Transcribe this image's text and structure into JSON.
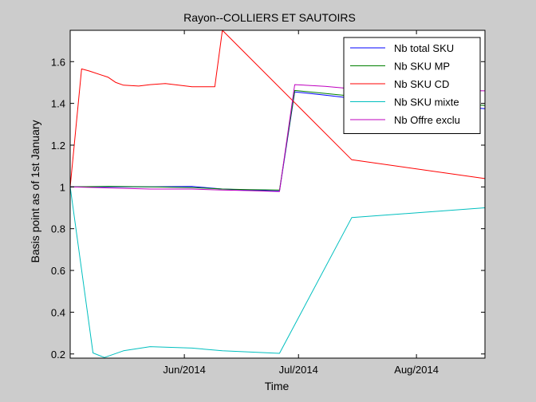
{
  "chart_data": {
    "type": "line",
    "title": "Rayon--COLLIERS ET SAUTOIRS",
    "xlabel": "Time",
    "ylabel": "Basis point as of 1st January",
    "ylim": [
      0.18,
      1.75
    ],
    "xlim": [
      "2014-05-02",
      "2014-08-19"
    ],
    "xticks": [
      {
        "x": "2014-06-01",
        "label": "Jun/2014"
      },
      {
        "x": "2014-07-01",
        "label": "Jul/2014"
      },
      {
        "x": "2014-08-01",
        "label": "Aug/2014"
      }
    ],
    "yticks": [
      {
        "y": 0.2,
        "label": "0.2"
      },
      {
        "y": 0.4,
        "label": "0.4"
      },
      {
        "y": 0.6,
        "label": "0.6"
      },
      {
        "y": 0.8,
        "label": "0.8"
      },
      {
        "y": 1.0,
        "label": "1"
      },
      {
        "y": 1.2,
        "label": "1.2"
      },
      {
        "y": 1.4,
        "label": "1.4"
      },
      {
        "y": 1.6,
        "label": "1.6"
      }
    ],
    "grid": false,
    "legend_position": "top-right",
    "series": [
      {
        "name": "Nb total SKU",
        "color": "#0000ff",
        "points": [
          [
            "2014-05-02",
            1.0
          ],
          [
            "2014-05-12",
            1.0
          ],
          [
            "2014-05-23",
            1.0
          ],
          [
            "2014-06-03",
            1.002
          ],
          [
            "2014-06-11",
            0.99
          ],
          [
            "2014-06-18",
            0.985
          ],
          [
            "2014-06-26",
            0.98
          ],
          [
            "2014-06-30",
            1.455
          ],
          [
            "2014-07-08",
            1.44
          ],
          [
            "2014-07-15",
            1.425
          ],
          [
            "2014-08-19",
            1.375
          ]
        ]
      },
      {
        "name": "Nb SKU MP",
        "color": "#008000",
        "points": [
          [
            "2014-05-02",
            1.0
          ],
          [
            "2014-05-12",
            1.003
          ],
          [
            "2014-05-23",
            1.0
          ],
          [
            "2014-06-03",
            0.997
          ],
          [
            "2014-06-11",
            0.99
          ],
          [
            "2014-06-18",
            0.987
          ],
          [
            "2014-06-26",
            0.985
          ],
          [
            "2014-06-30",
            1.462
          ],
          [
            "2014-07-08",
            1.448
          ],
          [
            "2014-07-15",
            1.435
          ],
          [
            "2014-08-19",
            1.39
          ]
        ]
      },
      {
        "name": "Nb SKU CD",
        "color": "#ff0000",
        "points": [
          [
            "2014-05-02",
            1.0
          ],
          [
            "2014-05-05",
            1.565
          ],
          [
            "2014-05-07",
            1.555
          ],
          [
            "2014-05-12",
            1.525
          ],
          [
            "2014-05-14",
            1.5
          ],
          [
            "2014-05-16",
            1.487
          ],
          [
            "2014-05-20",
            1.483
          ],
          [
            "2014-05-23",
            1.49
          ],
          [
            "2014-05-27",
            1.495
          ],
          [
            "2014-06-03",
            1.48
          ],
          [
            "2014-06-09",
            1.48
          ],
          [
            "2014-06-11",
            1.75
          ],
          [
            "2014-07-15",
            1.13
          ],
          [
            "2014-08-19",
            1.04
          ]
        ]
      },
      {
        "name": "Nb SKU mixte",
        "color": "#00bfbf",
        "points": [
          [
            "2014-05-02",
            1.0
          ],
          [
            "2014-05-08",
            0.205
          ],
          [
            "2014-05-11",
            0.183
          ],
          [
            "2014-05-16",
            0.215
          ],
          [
            "2014-05-23",
            0.235
          ],
          [
            "2014-06-03",
            0.228
          ],
          [
            "2014-06-11",
            0.215
          ],
          [
            "2014-06-26",
            0.203
          ],
          [
            "2014-07-15",
            0.853
          ],
          [
            "2014-08-19",
            0.9
          ]
        ]
      },
      {
        "name": "Nb Offre exclu",
        "color": "#bf00bf",
        "points": [
          [
            "2014-05-02",
            1.0
          ],
          [
            "2014-05-12",
            0.995
          ],
          [
            "2014-05-23",
            0.99
          ],
          [
            "2014-06-03",
            0.99
          ],
          [
            "2014-06-11",
            0.985
          ],
          [
            "2014-06-18",
            0.982
          ],
          [
            "2014-06-26",
            0.978
          ],
          [
            "2014-06-30",
            1.49
          ],
          [
            "2014-07-08",
            1.482
          ],
          [
            "2014-07-15",
            1.47
          ],
          [
            "2014-08-19",
            1.46
          ]
        ]
      }
    ]
  }
}
